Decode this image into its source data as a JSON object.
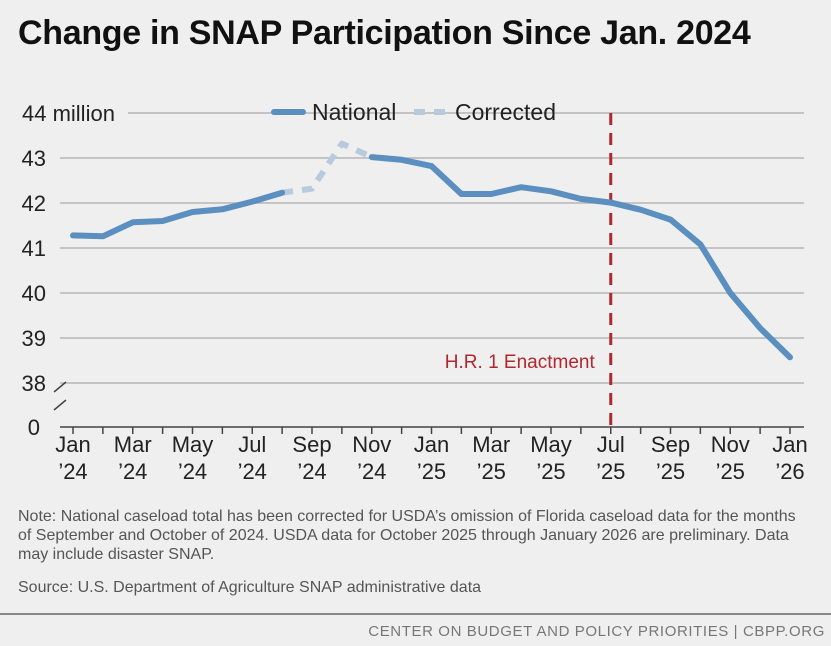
{
  "title": "Change in SNAP Participation Since Jan. 2024",
  "note": "Note: National caseload total has been corrected for USDA’s omission of Florida caseload data for the months of September and October of 2024. USDA data for October 2025 through January 2026 are preliminary. Data may include disaster SNAP.",
  "source": "Source: U.S. Department of Agriculture SNAP administrative data",
  "credit": "CENTER ON BUDGET AND POLICY PRIORITIES | CBPP.ORG",
  "chart_data": {
    "type": "line",
    "y_unit_label": "44 million",
    "y_ticks": [
      43,
      42,
      41,
      40,
      39,
      38
    ],
    "y_break_label": "0",
    "ylim": [
      38,
      44
    ],
    "y_axis_break": true,
    "grid": "horizontal",
    "legend_position": "top-center",
    "x": [
      "Jan 2024",
      "Feb 2024",
      "Mar 2024",
      "Apr 2024",
      "May 2024",
      "Jun 2024",
      "Jul 2024",
      "Aug 2024",
      "Sep 2024",
      "Oct 2024",
      "Nov 2024",
      "Dec 2024",
      "Jan 2025",
      "Feb 2025",
      "Mar 2025",
      "Apr 2025",
      "May 2025",
      "Jun 2025",
      "Jul 2025",
      "Aug 2025",
      "Sep 2025",
      "Oct 2025",
      "Nov 2025",
      "Dec 2025",
      "Jan 2026"
    ],
    "x_tick_labels": [
      {
        "index": 0,
        "month": "Jan",
        "year": "’24"
      },
      {
        "index": 2,
        "month": "Mar",
        "year": "’24"
      },
      {
        "index": 4,
        "month": "May",
        "year": "’24"
      },
      {
        "index": 6,
        "month": "Jul",
        "year": "’24"
      },
      {
        "index": 8,
        "month": "Sep",
        "year": "’24"
      },
      {
        "index": 10,
        "month": "Nov",
        "year": "’24"
      },
      {
        "index": 12,
        "month": "Jan",
        "year": "’25"
      },
      {
        "index": 14,
        "month": "Mar",
        "year": "’25"
      },
      {
        "index": 16,
        "month": "May",
        "year": "’25"
      },
      {
        "index": 18,
        "month": "Jul",
        "year": "’25"
      },
      {
        "index": 20,
        "month": "Sep",
        "year": "’25"
      },
      {
        "index": 22,
        "month": "Nov",
        "year": "’25"
      },
      {
        "index": 24,
        "month": "Jan",
        "year": "’26"
      }
    ],
    "series": [
      {
        "name": "National",
        "color": "#5a8fc0",
        "style": "solid",
        "values": [
          41.28,
          41.26,
          41.57,
          41.6,
          41.8,
          41.86,
          42.03,
          42.23,
          null,
          null,
          43.02,
          42.96,
          42.82,
          42.2,
          42.2,
          42.35,
          42.26,
          42.09,
          42.01,
          41.85,
          41.63,
          41.08,
          40.0,
          39.22,
          38.57
        ]
      },
      {
        "name": "Corrected",
        "color": "#b8cbdc",
        "style": "dashed",
        "values": [
          null,
          null,
          null,
          null,
          null,
          null,
          null,
          42.23,
          42.32,
          43.32,
          43.02,
          null,
          null,
          null,
          null,
          null,
          null,
          null,
          null,
          null,
          null,
          null,
          null,
          null,
          null
        ]
      }
    ],
    "annotations": [
      {
        "type": "vertical_line",
        "x": "Jul 2025",
        "label": "H.R. 1 Enactment",
        "color": "#b0282e",
        "style": "dashed"
      }
    ]
  }
}
